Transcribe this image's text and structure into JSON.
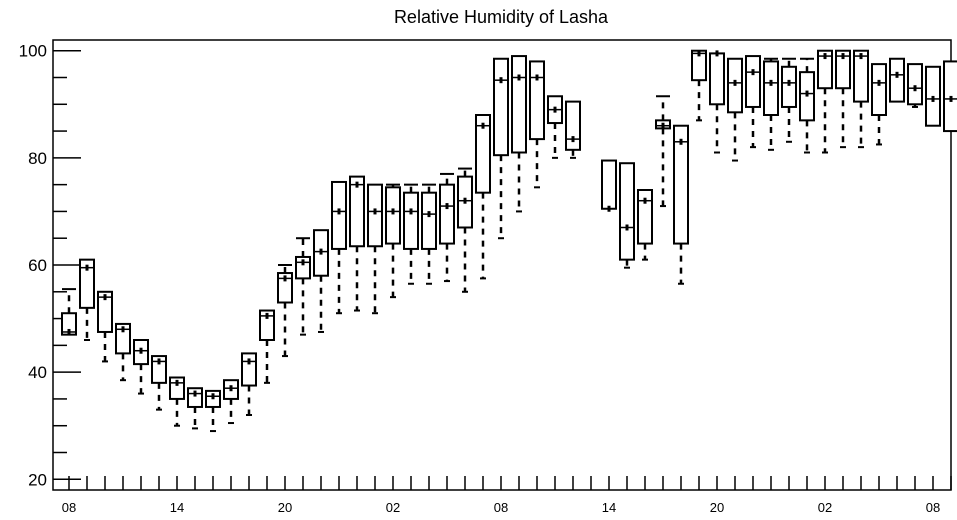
{
  "chart_data": {
    "type": "boxplot",
    "title": "Relative Humidity of Lasha",
    "xlabel": "",
    "ylabel": "",
    "ylim": [
      18,
      102
    ],
    "y_ticks": [
      20,
      40,
      60,
      80,
      100
    ],
    "x_tick_labels": [
      {
        "hour_index": 0,
        "label": "08"
      },
      {
        "hour_index": 6,
        "label": "14"
      },
      {
        "hour_index": 12,
        "label": "20"
      },
      {
        "hour_index": 18,
        "label": "02"
      },
      {
        "hour_index": 24,
        "label": "08"
      },
      {
        "hour_index": 30,
        "label": "14"
      },
      {
        "hour_index": 36,
        "label": "20"
      },
      {
        "hour_index": 42,
        "label": "02"
      },
      {
        "hour_index": 48,
        "label": "08"
      }
    ],
    "boxes": [
      {
        "q1": 47,
        "median": 47.5,
        "q3": 51,
        "whisker_low": 47,
        "whisker_high": 55.5
      },
      {
        "q1": 52,
        "median": 59.5,
        "q3": 61,
        "whisker_low": 46,
        "whisker_high": 61
      },
      {
        "q1": 47.5,
        "median": 54,
        "q3": 55,
        "whisker_low": 42,
        "whisker_high": 55
      },
      {
        "q1": 43.5,
        "median": 48,
        "q3": 49,
        "whisker_low": 38.5,
        "whisker_high": 49
      },
      {
        "q1": 41.5,
        "median": 44,
        "q3": 46,
        "whisker_low": 36,
        "whisker_high": 46
      },
      {
        "q1": 38,
        "median": 42,
        "q3": 43,
        "whisker_low": 33,
        "whisker_high": 43
      },
      {
        "q1": 35,
        "median": 38,
        "q3": 39,
        "whisker_low": 30,
        "whisker_high": 39
      },
      {
        "q1": 33.5,
        "median": 36,
        "q3": 37,
        "whisker_low": 29.5,
        "whisker_high": 37
      },
      {
        "q1": 33.5,
        "median": 35.5,
        "q3": 36.5,
        "whisker_low": 29,
        "whisker_high": 36.5
      },
      {
        "q1": 35,
        "median": 37,
        "q3": 38.5,
        "whisker_low": 30.5,
        "whisker_high": 38.5
      },
      {
        "q1": 37.5,
        "median": 42,
        "q3": 43.5,
        "whisker_low": 32,
        "whisker_high": 43.5
      },
      {
        "q1": 46,
        "median": 50.5,
        "q3": 51.5,
        "whisker_low": 38,
        "whisker_high": 51.5
      },
      {
        "q1": 53,
        "median": 57.5,
        "q3": 58.5,
        "whisker_low": 43,
        "whisker_high": 60
      },
      {
        "q1": 57.5,
        "median": 60.5,
        "q3": 61.5,
        "whisker_low": 47,
        "whisker_high": 65
      },
      {
        "q1": 58,
        "median": 62.5,
        "q3": 66.5,
        "whisker_low": 47.5,
        "whisker_high": 66.5
      },
      {
        "q1": 63,
        "median": 70,
        "q3": 75.5,
        "whisker_low": 51,
        "whisker_high": 75.5
      },
      {
        "q1": 63.5,
        "median": 75,
        "q3": 76.5,
        "whisker_low": 51.5,
        "whisker_high": 76.5
      },
      {
        "q1": 63.5,
        "median": 70,
        "q3": 75,
        "whisker_low": 51,
        "whisker_high": 75
      },
      {
        "q1": 64,
        "median": 70,
        "q3": 74.5,
        "whisker_low": 54,
        "whisker_high": 75
      },
      {
        "q1": 63,
        "median": 70,
        "q3": 73.5,
        "whisker_low": 56.5,
        "whisker_high": 75
      },
      {
        "q1": 63,
        "median": 69.5,
        "q3": 73.5,
        "whisker_low": 56.5,
        "whisker_high": 75
      },
      {
        "q1": 64,
        "median": 71,
        "q3": 75,
        "whisker_low": 57,
        "whisker_high": 77
      },
      {
        "q1": 67,
        "median": 72,
        "q3": 76.5,
        "whisker_low": 55,
        "whisker_high": 78
      },
      {
        "q1": 73.5,
        "median": 86,
        "q3": 88,
        "whisker_low": 57.5,
        "whisker_high": 88
      },
      {
        "q1": 80.5,
        "median": 94.5,
        "q3": 98.5,
        "whisker_low": 65,
        "whisker_high": 98.5
      },
      {
        "q1": 81,
        "median": 95,
        "q3": 99,
        "whisker_low": 70,
        "whisker_high": 99
      },
      {
        "q1": 83.5,
        "median": 95,
        "q3": 98,
        "whisker_low": 74.5,
        "whisker_high": 98
      },
      {
        "q1": 86.5,
        "median": 89,
        "q3": 91.5,
        "whisker_low": 80,
        "whisker_high": 91.5
      },
      {
        "q1": 81.5,
        "median": 83.5,
        "q3": 90.5,
        "whisker_low": 80,
        "whisker_high": 90.5
      },
      null,
      {
        "q1": 70.5,
        "median": 70.5,
        "q3": 79.5,
        "whisker_low": 70.5,
        "whisker_high": 79.5
      },
      {
        "q1": 61,
        "median": 67,
        "q3": 79,
        "whisker_low": 59.5,
        "whisker_high": 79
      },
      {
        "q1": 64,
        "median": 72,
        "q3": 74,
        "whisker_low": 61,
        "whisker_high": 74
      },
      {
        "q1": 85.5,
        "median": 86,
        "q3": 87,
        "whisker_low": 71,
        "whisker_high": 91.5
      },
      {
        "q1": 64,
        "median": 83,
        "q3": 86,
        "whisker_low": 56.5,
        "whisker_high": 86
      },
      {
        "q1": 94.5,
        "median": 99.5,
        "q3": 100,
        "whisker_low": 87,
        "whisker_high": 100
      },
      {
        "q1": 90,
        "median": 99.5,
        "q3": 99.5,
        "whisker_low": 81,
        "whisker_high": 99.5
      },
      {
        "q1": 88.5,
        "median": 94,
        "q3": 98.5,
        "whisker_low": 79.5,
        "whisker_high": 98.5
      },
      {
        "q1": 89.5,
        "median": 96,
        "q3": 99,
        "whisker_low": 82,
        "whisker_high": 99
      },
      {
        "q1": 88,
        "median": 94,
        "q3": 98,
        "whisker_low": 81.5,
        "whisker_high": 98.5
      },
      {
        "q1": 89.5,
        "median": 94,
        "q3": 97,
        "whisker_low": 83,
        "whisker_high": 98.5
      },
      {
        "q1": 87,
        "median": 92,
        "q3": 96,
        "whisker_low": 81,
        "whisker_high": 98.5
      },
      {
        "q1": 93,
        "median": 99,
        "q3": 100,
        "whisker_low": 81,
        "whisker_high": 100
      },
      {
        "q1": 93,
        "median": 99,
        "q3": 100,
        "whisker_low": 82,
        "whisker_high": 100
      },
      {
        "q1": 90.5,
        "median": 99,
        "q3": 100,
        "whisker_low": 82,
        "whisker_high": 100
      },
      {
        "q1": 88,
        "median": 94,
        "q3": 97.5,
        "whisker_low": 82.5,
        "whisker_high": 97.5
      },
      {
        "q1": 90.5,
        "median": 95.5,
        "q3": 98.5,
        "whisker_low": 90.5,
        "whisker_high": 98.5
      },
      {
        "q1": 90,
        "median": 93,
        "q3": 97.5,
        "whisker_low": 89.5,
        "whisker_high": 97.5
      },
      {
        "q1": 86,
        "median": 91,
        "q3": 97,
        "whisker_low": 86,
        "whisker_high": 97
      },
      {
        "q1": 85,
        "median": 91,
        "q3": 98,
        "whisker_low": 85,
        "whisker_high": 98
      }
    ]
  }
}
